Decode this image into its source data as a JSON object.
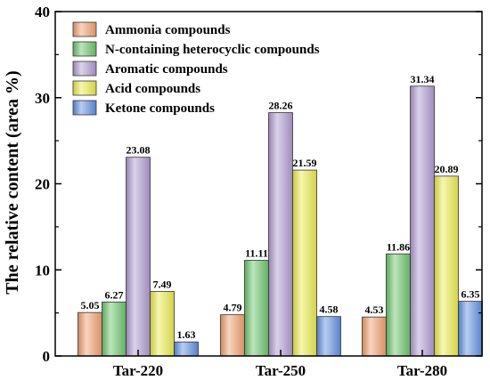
{
  "chart_data": {
    "type": "bar",
    "title": "",
    "xlabel": "",
    "ylabel": "The relative content (area %)",
    "ylim": [
      0,
      40
    ],
    "yticks": [
      "0",
      "10",
      "20",
      "30",
      "40"
    ],
    "categories": [
      "Tar-220",
      "Tar-250",
      "Tar-280"
    ],
    "legend_position": "top-left",
    "series": [
      {
        "name": "Ammonia compounds",
        "color": "#f0a070",
        "values": [
          5.05,
          4.79,
          4.53
        ],
        "labels": [
          "5.05",
          "4.79",
          "4.53"
        ]
      },
      {
        "name": "N-containing heterocyclic compounds",
        "color": "#6cc46c",
        "values": [
          6.27,
          11.11,
          11.86
        ],
        "labels": [
          "6.27",
          "11.11",
          "11.86"
        ]
      },
      {
        "name": "Aromatic compounds",
        "color": "#b09ad0",
        "values": [
          23.08,
          28.26,
          31.34
        ],
        "labels": [
          "23.08",
          "28.26",
          "31.34"
        ]
      },
      {
        "name": "Acid compounds",
        "color": "#eaea50",
        "values": [
          7.49,
          21.59,
          20.89
        ],
        "labels": [
          "7.49",
          "21.59",
          "20.89"
        ]
      },
      {
        "name": "Ketone compounds",
        "color": "#5f8fe0",
        "values": [
          1.63,
          4.58,
          6.35
        ],
        "labels": [
          "1.63",
          "4.58",
          "6.35"
        ]
      }
    ]
  }
}
